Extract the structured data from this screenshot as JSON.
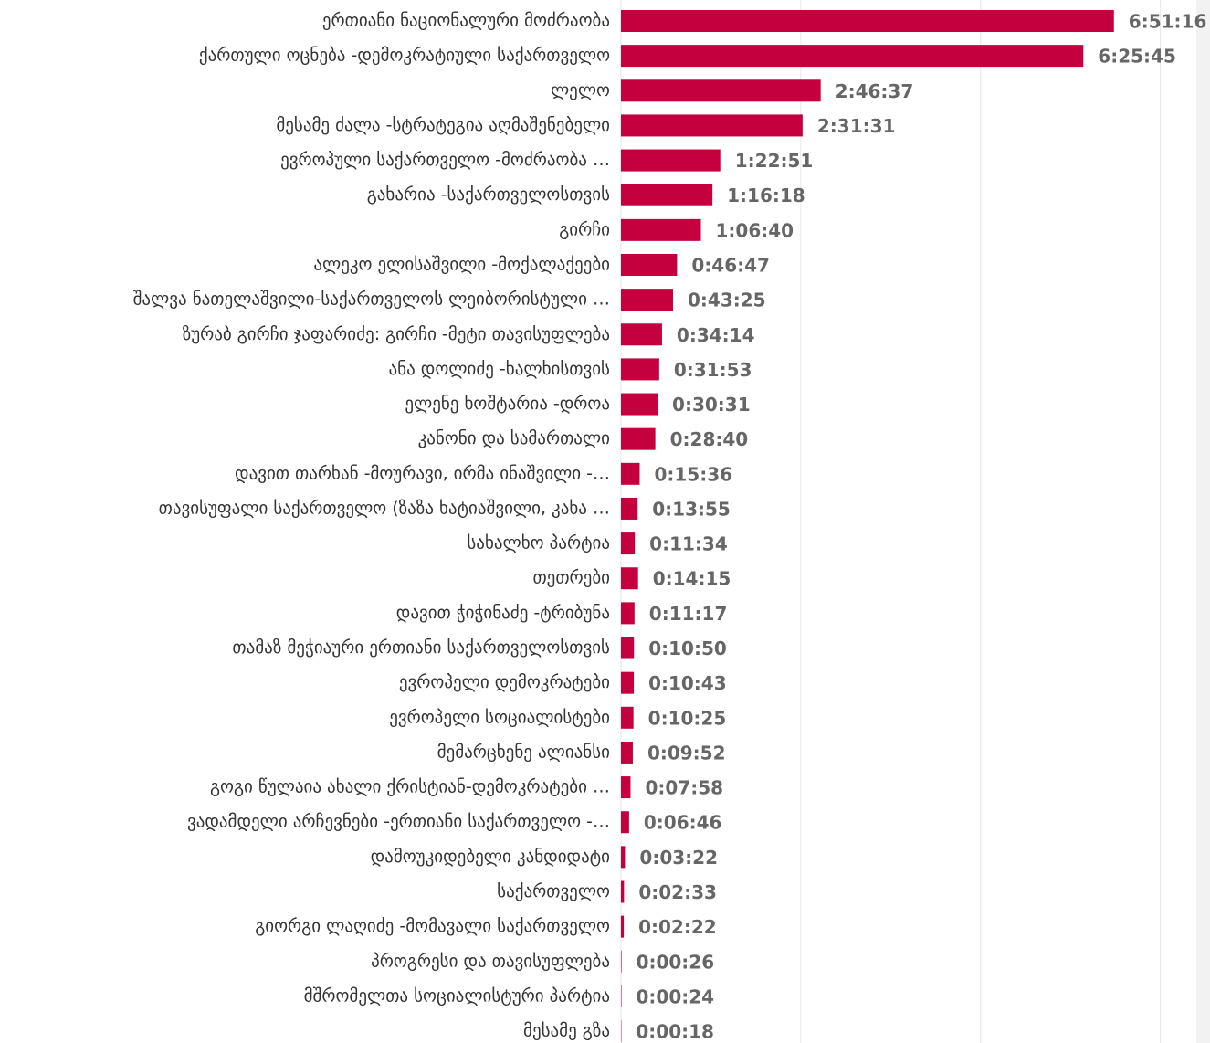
{
  "chart_data": {
    "type": "barh",
    "categories": [
      "ერთიანი ნაციონალური მოძრაობა",
      "ქართული ოცნება -დემოკრატიული საქართველო",
      "ლელო",
      "მესამე ძალა -სტრატეგია აღმაშენებელი",
      "ევროპული საქართველო -მოძრაობა …",
      "გახარია -საქართველოსთვის",
      "გირჩი",
      "ალეკო ელისაშვილი -მოქალაქეები",
      "შალვა ნათელაშვილი-საქართველოს ლეიბორისტული …",
      "ზურაბ გირჩი ჯაფარიძე: გირჩი -მეტი თავისუფლება",
      "ანა დოლიძე -ხალხისთვის",
      "ელენე ხოშტარია -დროა",
      "კანონი და სამართალი",
      "დავით თარხან -მოურავი, ირმა ინაშვილი -…",
      "თავისუფალი საქართველო (ზაზა ხატიაშვილი, კახა …",
      "სახალხო პარტია",
      "თეთრები",
      "დავით ჭიჭინაძე -ტრიბუნა",
      "თამაზ მეჭიაური ერთიანი საქართველოსთვის",
      "ევროპელი დემოკრატები",
      "ევროპელი სოციალისტები",
      "მემარცხენე ალიანსი",
      "გოგი წულაია ახალი ქრისტიან-დემოკრატები …",
      "ვადამდელი არჩევნები -ერთიანი საქართველო -…",
      "დამოუკიდებელი კანდიდატი",
      "საქართველო",
      "გიორგი ლაღიძე -მომავალი საქართველო",
      "პროგრესი და თავისუფლება",
      "მშრომელთა სოციალისტური პარტია",
      "მესამე გზა"
    ],
    "values": [
      24676,
      23145,
      9997,
      9091,
      4971,
      4578,
      4000,
      2807,
      2605,
      2054,
      1913,
      1831,
      1720,
      936,
      835,
      694,
      855,
      677,
      650,
      643,
      625,
      592,
      478,
      406,
      202,
      153,
      142,
      26,
      24,
      18
    ],
    "value_labels": [
      "6:51:16",
      "6:25:45",
      "2:46:37",
      "2:31:31",
      "1:22:51",
      "1:16:18",
      "1:06:40",
      "0:46:47",
      "0:43:25",
      "0:34:14",
      "0:31:53",
      "0:30:31",
      "0:28:40",
      "0:15:36",
      "0:13:55",
      "0:11:34",
      "0:14:15",
      "0:11:17",
      "0:10:50",
      "0:10:43",
      "0:10:25",
      "0:09:52",
      "0:07:58",
      "0:06:46",
      "0:03:22",
      "0:02:33",
      "0:02:22",
      "0:00:26",
      "0:00:24",
      "0:00:18"
    ],
    "color": "#c5003e",
    "xlim": [
      0,
      28800
    ],
    "xticks": [
      0,
      9000,
      18000,
      27000
    ],
    "grid": true
  }
}
